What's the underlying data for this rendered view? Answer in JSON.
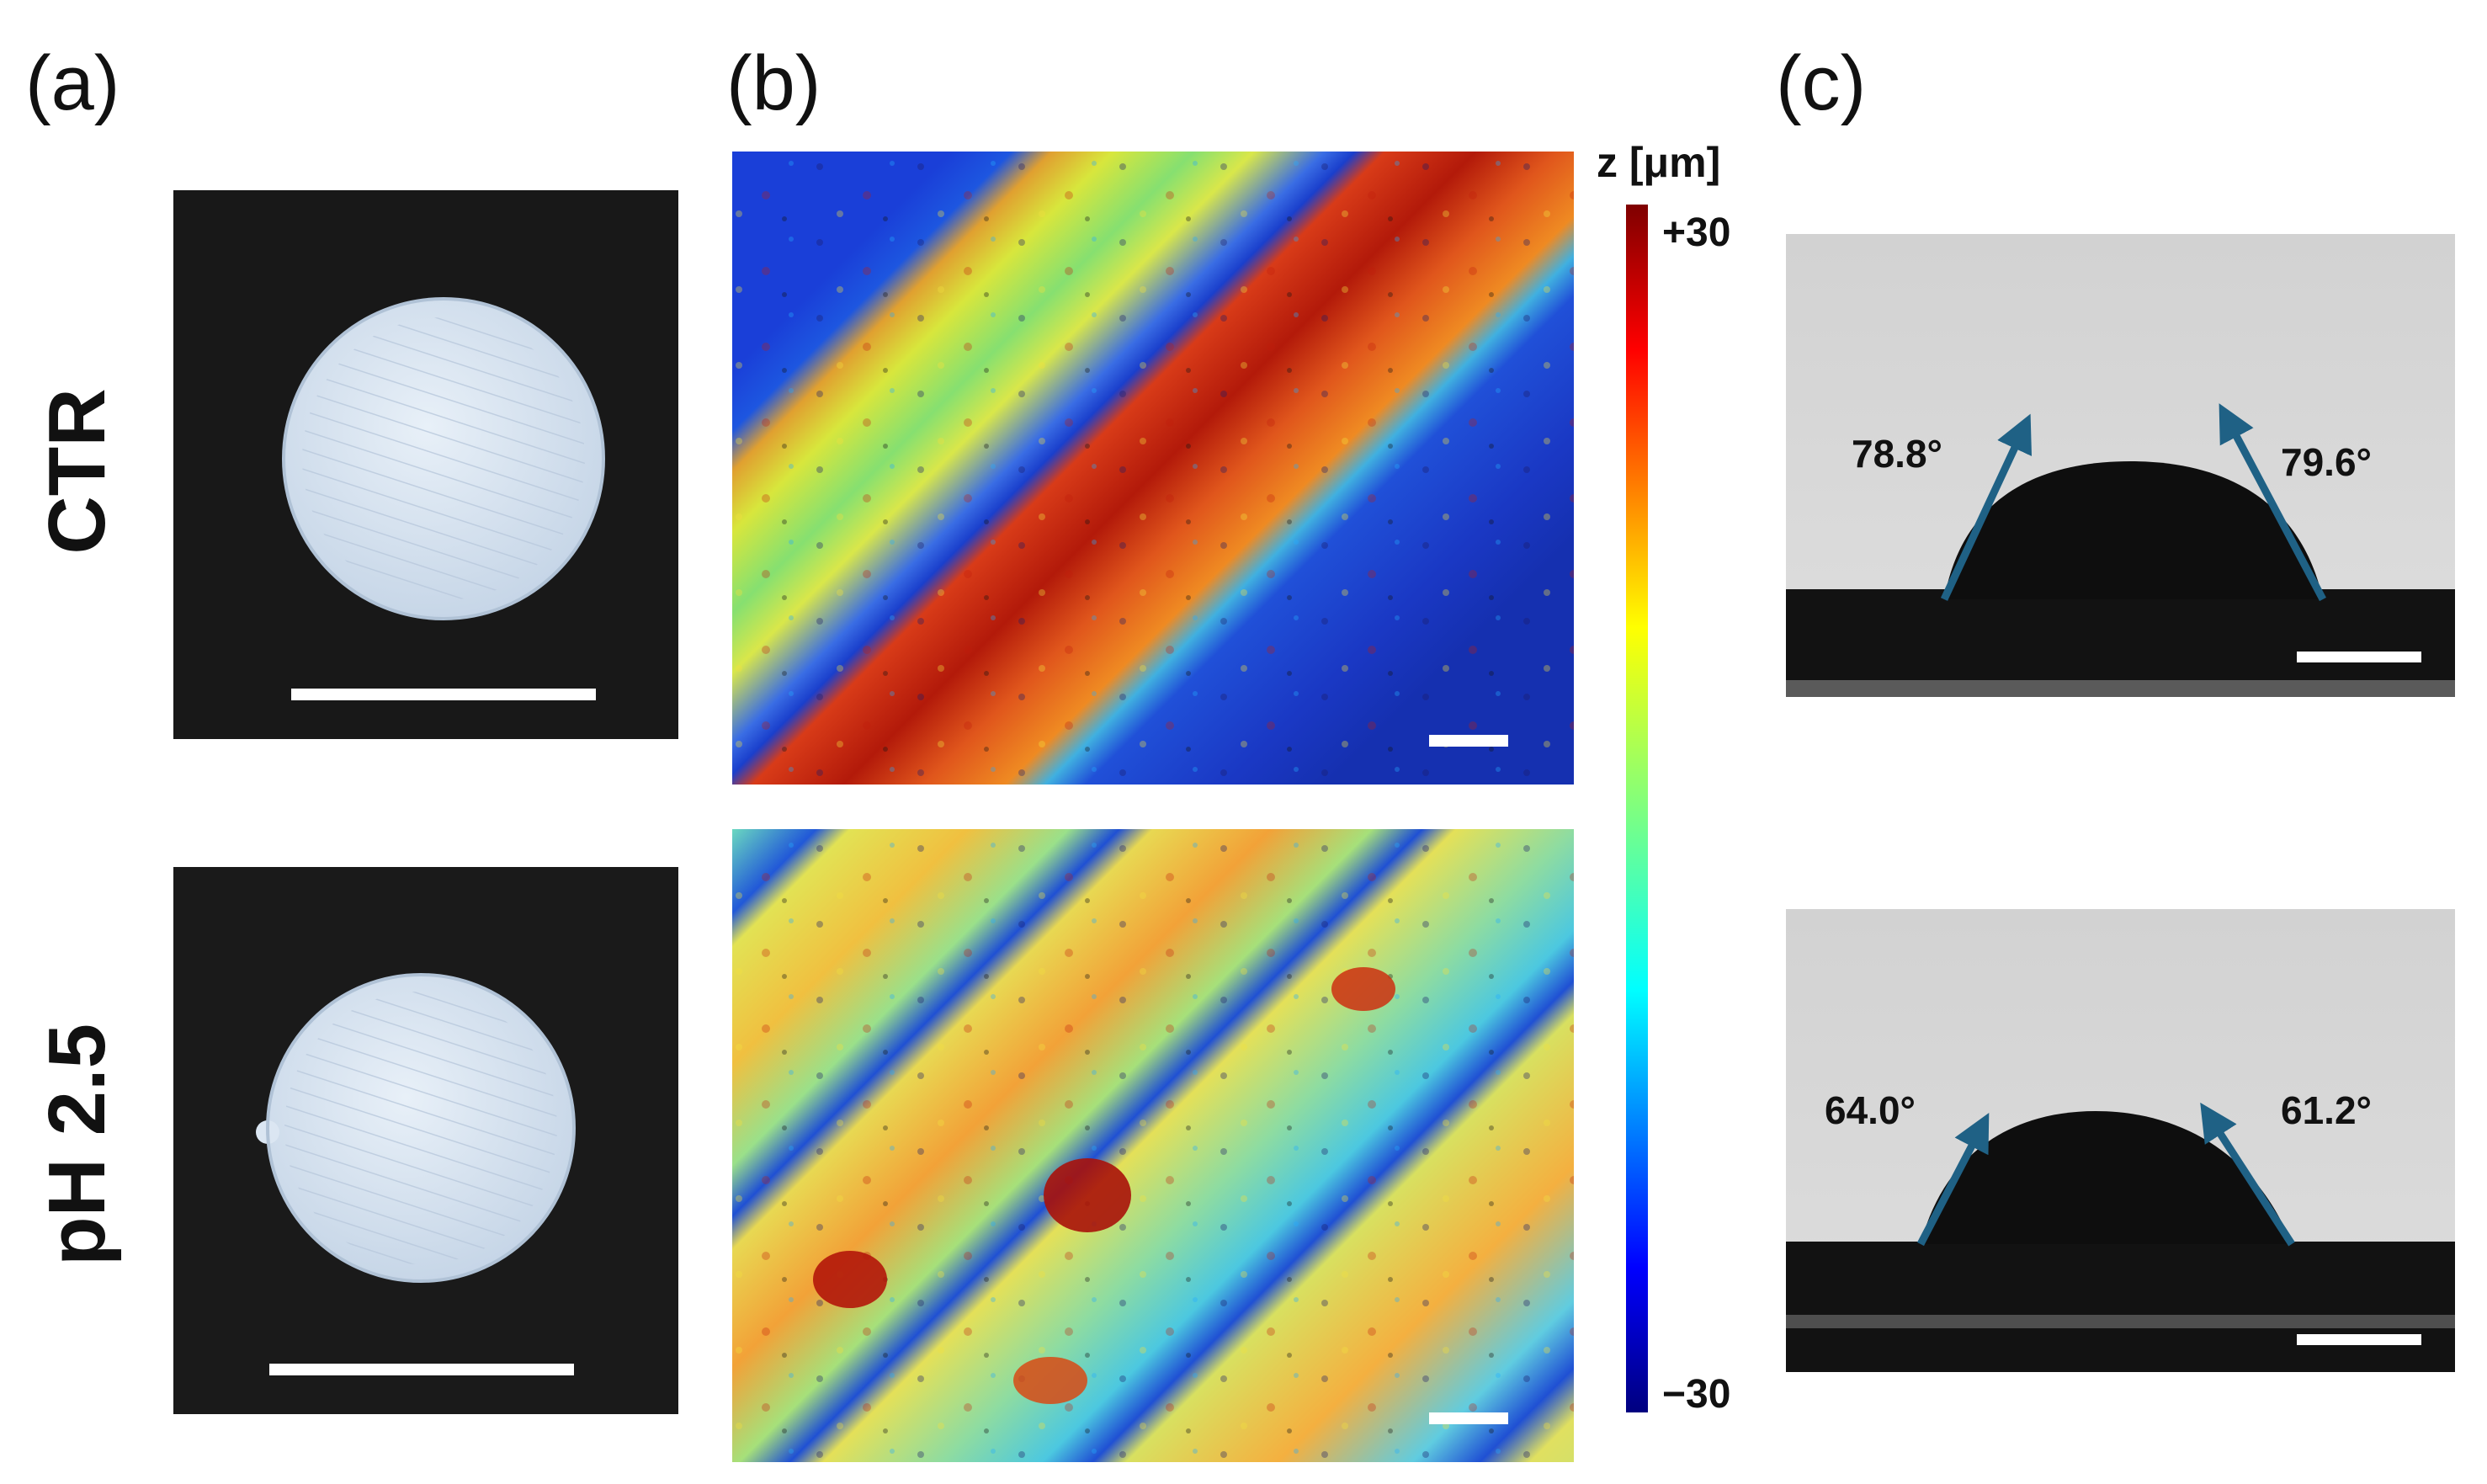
{
  "panels": [
    {
      "label": "(a)"
    },
    {
      "label": "(b)"
    },
    {
      "label": "(c)"
    }
  ],
  "rows": [
    {
      "label": "CTR"
    },
    {
      "label": "pH 2.5"
    }
  ],
  "colorbar": {
    "title": "z [μm]",
    "max_label": "+30",
    "min_label": "−30",
    "colormap": "jet"
  },
  "contact_angles": {
    "ctr": {
      "left": "78.8°",
      "right": "79.6°"
    },
    "ph25": {
      "left": "64.0°",
      "right": "61.2°"
    }
  },
  "colors": {
    "arrow": "#1f6185",
    "background_photo": "#181818",
    "sample_disc": "#dce8f4",
    "scale_bar": "#ffffff"
  }
}
